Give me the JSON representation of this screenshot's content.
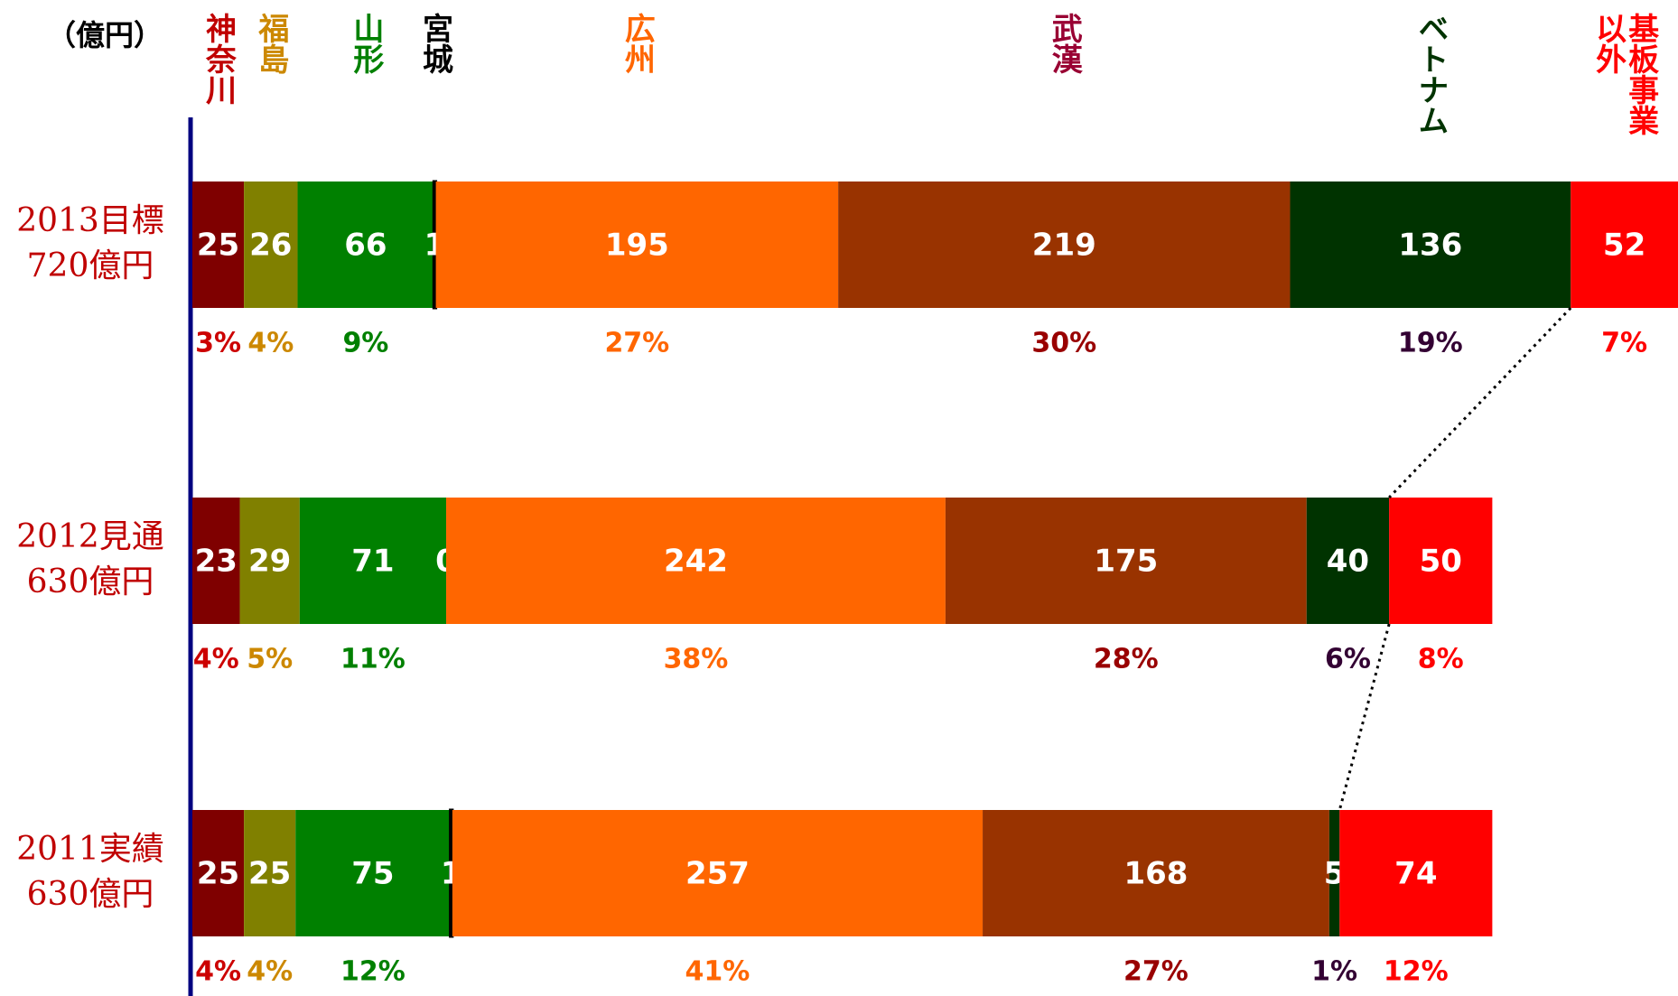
{
  "chart_data": {
    "type": "stacked_barh",
    "unit": "（億円）",
    "categories": [
      "2013目標",
      "2012見通",
      "2011実績"
    ],
    "category_subtitles": [
      "720億円",
      "630億円",
      "630億円"
    ],
    "series": [
      {
        "name": "神奈川",
        "color": "#7f0000",
        "label_color": "#c00000",
        "percent_color": "#cc0000",
        "values": [
          25,
          23,
          25
        ],
        "percent_labels": [
          "3%",
          "4%",
          "4%"
        ]
      },
      {
        "name": "福島",
        "color": "#808000",
        "label_color": "#cc8800",
        "percent_color": "#cc8800",
        "values": [
          26,
          29,
          25
        ],
        "percent_labels": [
          "4%",
          "5%",
          "4%"
        ]
      },
      {
        "name": "山形",
        "color": "#008000",
        "label_color": "#008000",
        "percent_color": "#008000",
        "values": [
          66,
          71,
          75
        ],
        "percent_labels": [
          "9%",
          "11%",
          "12%"
        ]
      },
      {
        "name": "宮城",
        "color": "#000000",
        "label_color": "#000000",
        "values": [
          1,
          0,
          1
        ]
      },
      {
        "name": "広州",
        "color": "#ff6600",
        "label_color": "#ff6600",
        "percent_color": "#ff6600",
        "values": [
          195,
          242,
          257
        ],
        "percent_labels": [
          "27%",
          "38%",
          "41%"
        ]
      },
      {
        "name": "武漢",
        "color": "#993300",
        "label_color": "#990033",
        "percent_color": "#990000",
        "values": [
          219,
          175,
          168
        ],
        "percent_labels": [
          "30%",
          "28%",
          "27%"
        ]
      },
      {
        "name": "ベトナム",
        "color": "#003300",
        "label_color": "#003300",
        "percent_color": "#330033",
        "values": [
          136,
          40,
          5
        ],
        "percent_labels": [
          "19%",
          "6%",
          "1%"
        ]
      },
      {
        "name": "基板事業以外",
        "color": "#ff0000",
        "label_color": "#ff0000",
        "percent_color": "#ff0000",
        "values": [
          52,
          50,
          74
        ],
        "percent_labels": [
          "7%",
          "8%",
          "12%"
        ]
      }
    ]
  }
}
